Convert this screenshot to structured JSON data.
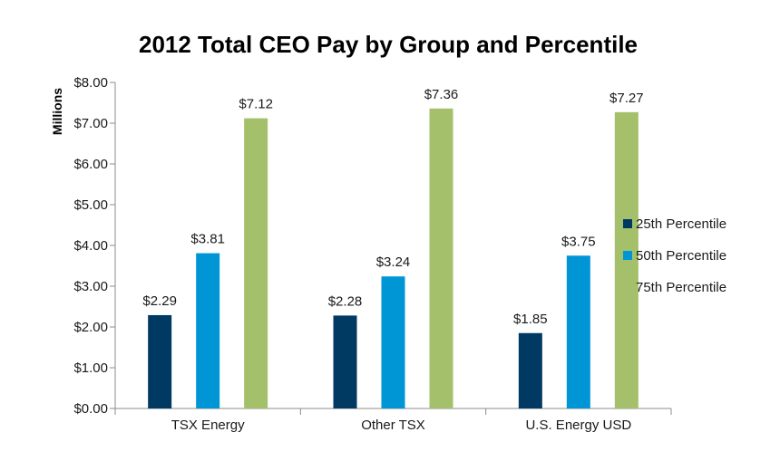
{
  "chart_data": {
    "type": "bar",
    "title": "2012 Total CEO Pay by Group and Percentile",
    "xlabel": "",
    "ylabel": "Millions",
    "ylim": [
      0,
      8
    ],
    "y_ticks": [
      0,
      1,
      2,
      3,
      4,
      5,
      6,
      7,
      8
    ],
    "y_tick_labels": [
      "$0.00",
      "$1.00",
      "$2.00",
      "$3.00",
      "$4.00",
      "$5.00",
      "$6.00",
      "$7.00",
      "$8.00"
    ],
    "categories": [
      "TSX Energy",
      "Other TSX",
      "U.S. Energy USD"
    ],
    "series": [
      {
        "name": "25th Percentile",
        "color": "#003a63",
        "values": [
          2.29,
          2.28,
          1.85
        ],
        "labels": [
          "$2.29",
          "$2.28",
          "$1.85"
        ]
      },
      {
        "name": "50th Percentile",
        "color": "#0096d6",
        "values": [
          3.81,
          3.24,
          3.75
        ],
        "labels": [
          "$3.81",
          "$3.24",
          "$3.75"
        ]
      },
      {
        "name": "75th Percentile",
        "color": "#a5c06a",
        "values": [
          7.12,
          7.36,
          7.27
        ],
        "labels": [
          "$7.12",
          "$7.36",
          "$7.27"
        ]
      }
    ],
    "grid": false,
    "legend_position": "right"
  }
}
